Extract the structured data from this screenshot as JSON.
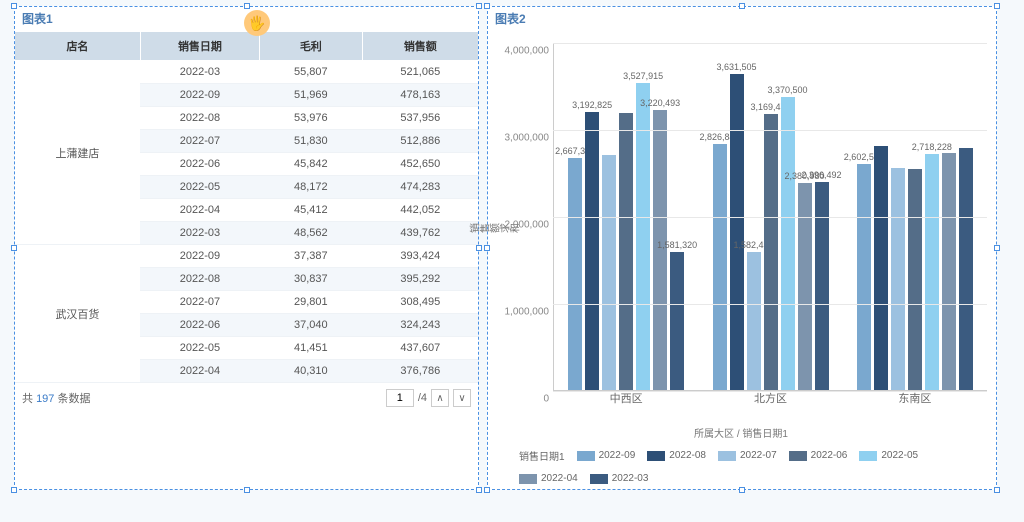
{
  "panel1": {
    "title": "图表1"
  },
  "panel2": {
    "title": "图表2"
  },
  "table": {
    "columns": [
      "店名",
      "销售日期",
      "毛利",
      "销售额"
    ],
    "groups": [
      {
        "store": "上蒲建店",
        "rows": [
          {
            "date": "2022-03",
            "gp": "55,807",
            "sales": "521,065"
          },
          {
            "date": "2022-09",
            "gp": "51,969",
            "sales": "478,163"
          },
          {
            "date": "2022-08",
            "gp": "53,976",
            "sales": "537,956"
          },
          {
            "date": "2022-07",
            "gp": "51,830",
            "sales": "512,886"
          },
          {
            "date": "2022-06",
            "gp": "45,842",
            "sales": "452,650"
          },
          {
            "date": "2022-05",
            "gp": "48,172",
            "sales": "474,283"
          },
          {
            "date": "2022-04",
            "gp": "45,412",
            "sales": "442,052"
          },
          {
            "date": "2022-03",
            "gp": "48,562",
            "sales": "439,762"
          }
        ]
      },
      {
        "store": "武汉百货",
        "rows": [
          {
            "date": "2022-09",
            "gp": "37,387",
            "sales": "393,424"
          },
          {
            "date": "2022-08",
            "gp": "30,837",
            "sales": "395,292"
          },
          {
            "date": "2022-07",
            "gp": "29,801",
            "sales": "308,495"
          },
          {
            "date": "2022-06",
            "gp": "37,040",
            "sales": "324,243"
          },
          {
            "date": "2022-05",
            "gp": "41,451",
            "sales": "437,607"
          },
          {
            "date": "2022-04",
            "gp": "40,310",
            "sales": "376,786"
          }
        ]
      }
    ]
  },
  "footer": {
    "prefix": "共",
    "count": "197",
    "suffix": "条数据",
    "page": "1",
    "total": "/4"
  },
  "chart": {
    "type": "bar",
    "ymax": 4000000,
    "ticks": [
      0,
      1000000,
      2000000,
      3000000,
      4000000
    ],
    "tick_labels": [
      "0",
      "1,000,000",
      "2,000,000",
      "3,000,000",
      "4,000,000"
    ],
    "ylabel": "销售额求和",
    "xlabel": "所属大区 / 销售日期1",
    "series_colors": {
      "2022-09": "#7aa8cf",
      "2022-08": "#2d4f76",
      "2022-07": "#9cc1e0",
      "2022-06": "#546d88",
      "2022-05": "#8fd0f0",
      "2022-04": "#7d94ad",
      "2022-03": "#3b5b80"
    },
    "groups": [
      {
        "name": "中西区",
        "bars": [
          {
            "s": "2022-09",
            "v": 2667321,
            "lbl": "2,667,321"
          },
          {
            "s": "2022-08",
            "v": 3192825,
            "lbl": "3,192,825"
          },
          {
            "s": "2022-07",
            "v": 2700000,
            "lbl": ""
          },
          {
            "s": "2022-06",
            "v": 3180000,
            "lbl": ""
          },
          {
            "s": "2022-05",
            "v": 3527915,
            "lbl": "3,527,915"
          },
          {
            "s": "2022-04",
            "v": 3220493,
            "lbl": "3,220,493"
          },
          {
            "s": "2022-03",
            "v": 1581320,
            "lbl": "1,581,320"
          }
        ]
      },
      {
        "name": "北方区",
        "bars": [
          {
            "s": "2022-09",
            "v": 2826845,
            "lbl": "2,826,845"
          },
          {
            "s": "2022-08",
            "v": 3631505,
            "lbl": "3,631,505"
          },
          {
            "s": "2022-07",
            "v": 1582434,
            "lbl": "1,582,434"
          },
          {
            "s": "2022-06",
            "v": 3169471,
            "lbl": "3,169,471"
          },
          {
            "s": "2022-05",
            "v": 3370500,
            "lbl": "3,370,500"
          },
          {
            "s": "2022-04",
            "v": 2380980,
            "lbl": "2,380,980"
          },
          {
            "s": "2022-03",
            "v": 2396492,
            "lbl": "2,396,492"
          }
        ]
      },
      {
        "name": "东南区",
        "bars": [
          {
            "s": "2022-09",
            "v": 2602546,
            "lbl": "2,602,546"
          },
          {
            "s": "2022-08",
            "v": 2800000,
            "lbl": ""
          },
          {
            "s": "2022-07",
            "v": 2550000,
            "lbl": ""
          },
          {
            "s": "2022-06",
            "v": 2540000,
            "lbl": ""
          },
          {
            "s": "2022-05",
            "v": 2718228,
            "lbl": "2,718,228"
          },
          {
            "s": "2022-04",
            "v": 2720000,
            "lbl": ""
          },
          {
            "s": "2022-03",
            "v": 2780000,
            "lbl": ""
          }
        ]
      }
    ],
    "legend_title": "销售日期1",
    "legend": [
      "2022-09",
      "2022-08",
      "2022-07",
      "2022-06",
      "2022-05",
      "2022-04",
      "2022-03"
    ]
  }
}
